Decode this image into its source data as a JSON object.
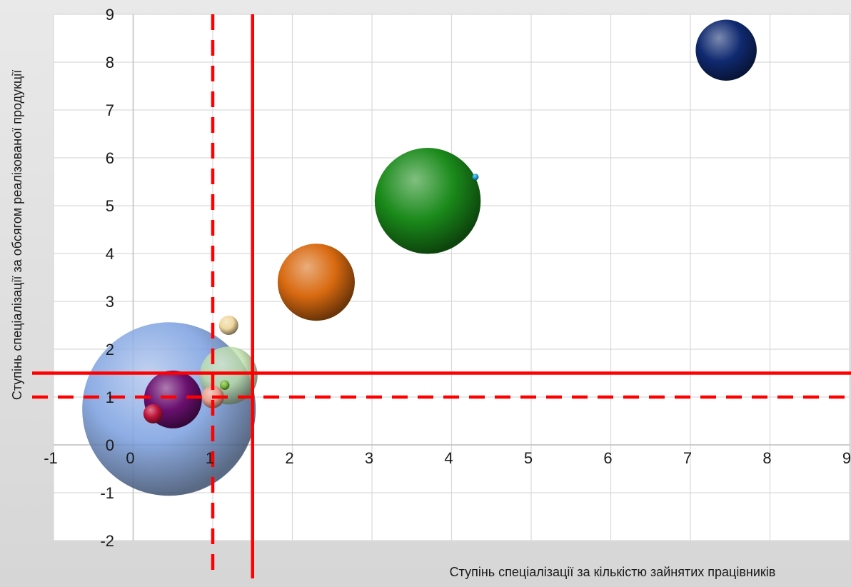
{
  "chart_data": {
    "type": "bubble",
    "title": "",
    "xlabel": "Ступінь спеціалізації за кількістю зайнятих працівників",
    "ylabel": "Ступінь спеціалізації за обсягом реалізованої  продукції",
    "xlim": [
      -1,
      9
    ],
    "ylim": [
      -2,
      9
    ],
    "x_ticks": [
      "-1",
      "0",
      "1",
      "2",
      "3",
      "4",
      "5",
      "6",
      "7",
      "8",
      "9"
    ],
    "y_ticks": [
      "-2",
      "-1",
      "0",
      "1",
      "2",
      "3",
      "4",
      "5",
      "6",
      "7",
      "8",
      "9"
    ],
    "grid": true,
    "reference_lines": [
      {
        "orientation": "vertical",
        "value": 1.0,
        "style": "dashed",
        "color": "#ff0000"
      },
      {
        "orientation": "vertical",
        "value": 1.5,
        "style": "solid",
        "color": "#ff0000"
      },
      {
        "orientation": "horizontal",
        "value": 1.0,
        "style": "dashed",
        "color": "#ff0000"
      },
      {
        "orientation": "horizontal",
        "value": 1.5,
        "style": "solid",
        "color": "#ff0000"
      }
    ],
    "bubbles": [
      {
        "x": 0.45,
        "y": 0.75,
        "size": 27,
        "color": "#7a9fe0"
      },
      {
        "x": 1.2,
        "y": 1.45,
        "size": 9,
        "color": "#bde0a8"
      },
      {
        "x": 0.5,
        "y": 0.95,
        "size": 9,
        "color": "#6a1070"
      },
      {
        "x": 0.25,
        "y": 0.65,
        "size": 3,
        "color": "#c0143a"
      },
      {
        "x": 1.0,
        "y": 1.0,
        "size": 3.5,
        "color": "#e8a090"
      },
      {
        "x": 1.15,
        "y": 1.25,
        "size": 1.5,
        "color": "#7ab838"
      },
      {
        "x": 1.2,
        "y": 2.5,
        "size": 3,
        "color": "#f0d8a0"
      },
      {
        "x": 2.3,
        "y": 3.4,
        "size": 12,
        "color": "#d86a10"
      },
      {
        "x": 3.7,
        "y": 5.1,
        "size": 16.5,
        "color": "#1a8a1a"
      },
      {
        "x": 4.3,
        "y": 5.6,
        "size": 1,
        "color": "#1aa0d8"
      },
      {
        "x": 7.45,
        "y": 8.25,
        "size": 9.5,
        "color": "#102a70"
      }
    ]
  }
}
